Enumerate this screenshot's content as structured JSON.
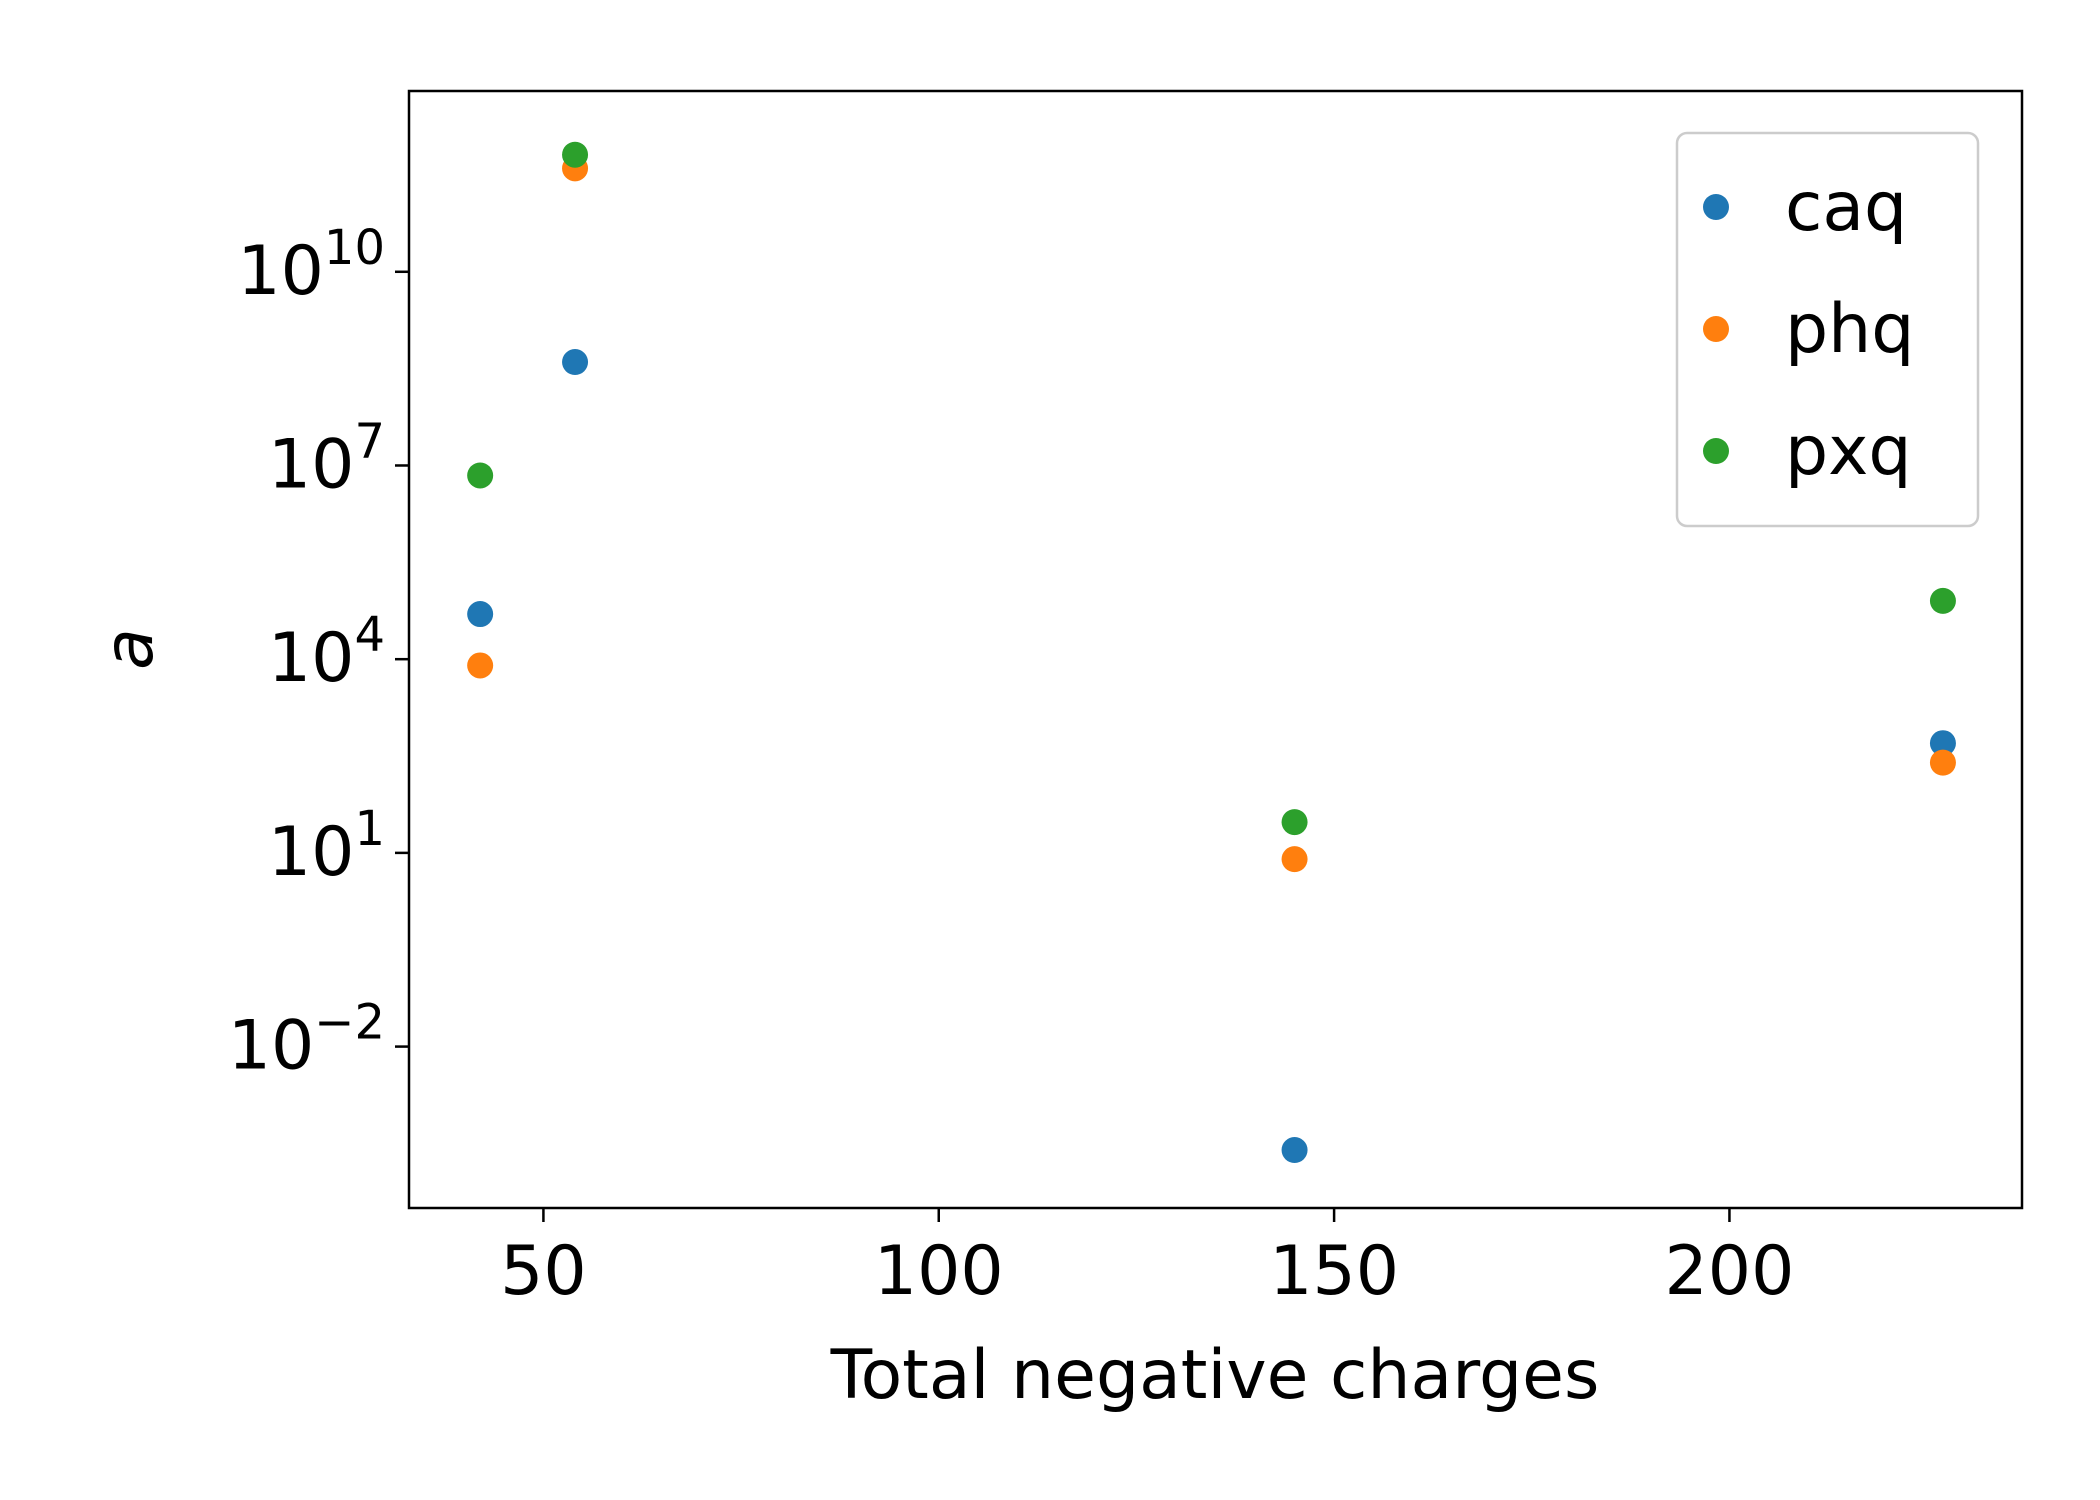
{
  "chart_data": {
    "type": "scatter",
    "xlabel": "Total negative charges",
    "ylabel": "a",
    "xlim": [
      33,
      237
    ],
    "ylim": [
      -4.5,
      12.8
    ],
    "y_scale": "log",
    "grid": false,
    "legend_position": "top-right",
    "x_ticks": [
      {
        "value": 50,
        "label": "50"
      },
      {
        "value": 100,
        "label": "100"
      },
      {
        "value": 150,
        "label": "150"
      },
      {
        "value": 200,
        "label": "200"
      }
    ],
    "y_ticks": [
      {
        "value": -2,
        "base": "10",
        "exp": "−2"
      },
      {
        "value": 1,
        "base": "10",
        "exp": "1"
      },
      {
        "value": 4,
        "base": "10",
        "exp": "4"
      },
      {
        "value": 7,
        "base": "10",
        "exp": "7"
      },
      {
        "value": 10,
        "base": "10",
        "exp": "10"
      }
    ],
    "series": [
      {
        "name": "caq",
        "color": "#1f77b4",
        "points": [
          {
            "x": 42,
            "y": 50000
          },
          {
            "x": 54,
            "y": 400000000
          },
          {
            "x": 145,
            "y": 0.00025
          },
          {
            "x": 227,
            "y": 500
          }
        ]
      },
      {
        "name": "phq",
        "color": "#ff7f0e",
        "points": [
          {
            "x": 42,
            "y": 8000
          },
          {
            "x": 54,
            "y": 400000000000
          },
          {
            "x": 145,
            "y": 8
          },
          {
            "x": 227,
            "y": 250
          }
        ]
      },
      {
        "name": "pxq",
        "color": "#2ca02c",
        "points": [
          {
            "x": 42,
            "y": 7000000
          },
          {
            "x": 54,
            "y": 650000000000
          },
          {
            "x": 145,
            "y": 30
          },
          {
            "x": 227,
            "y": 80000
          }
        ]
      }
    ]
  }
}
